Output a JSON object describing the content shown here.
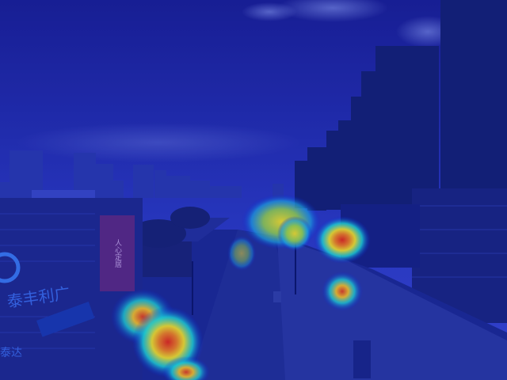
{
  "image": {
    "description_free": true,
    "overlay": "heatmap",
    "overlay_colors": {
      "low": "#0a1fd6",
      "mid": "#1fe0d0",
      "midhigh": "#f2e020",
      "high": "#e52a10"
    },
    "palette": {
      "sky_top": "#1a1f8c",
      "sky_bottom": "#3a4ad0",
      "buildings": "#14206a",
      "ground": "#1c2a8a"
    }
  },
  "signs": {
    "billboard_text": "人心定居",
    "building_sign": "泰丰利广",
    "lower_sign": "泰达"
  }
}
